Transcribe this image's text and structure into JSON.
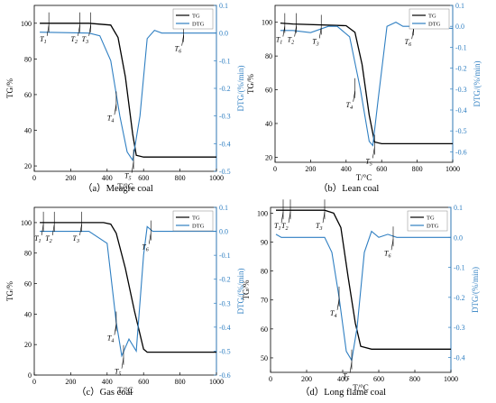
{
  "colors": {
    "tg": "#000000",
    "dtg": "#2f7fc2",
    "marker": "#000000"
  },
  "chart_data": [
    {
      "type": "line",
      "caption": "（a）Meagre coal",
      "xlabel": "T/°C",
      "ylabel": "TG/%",
      "y2label": "DTG/(%/min)",
      "xlim": [
        0,
        1000
      ],
      "xticks": [
        0,
        200,
        400,
        600,
        800,
        1000
      ],
      "ylim": [
        17,
        110
      ],
      "yticks": [
        20,
        40,
        60,
        80,
        100
      ],
      "y2lim": [
        -0.5,
        0.1
      ],
      "y2ticks": [
        -0.5,
        -0.4,
        -0.3,
        -0.2,
        -0.1,
        0.0,
        0.1
      ],
      "legend": [
        "TG",
        "DTG"
      ],
      "legend_position": "top-right",
      "series": [
        {
          "name": "TG",
          "axis": "left",
          "x": [
            30,
            300,
            420,
            460,
            500,
            540,
            560,
            600,
            1000
          ],
          "y": [
            100,
            100,
            99,
            92,
            70,
            38,
            26,
            25,
            25
          ]
        },
        {
          "name": "DTG",
          "axis": "right",
          "x": [
            30,
            300,
            360,
            420,
            470,
            510,
            540,
            580,
            620,
            660,
            700,
            1000
          ],
          "y": [
            0.003,
            0.0,
            -0.01,
            -0.1,
            -0.3,
            -0.43,
            -0.46,
            -0.3,
            -0.02,
            0.01,
            0.0,
            0.0
          ]
        }
      ],
      "markers": [
        {
          "label": "T1",
          "x": 80,
          "axis": "left",
          "y": 100
        },
        {
          "label": "T2",
          "x": 250,
          "axis": "left",
          "y": 100
        },
        {
          "label": "T3",
          "x": 310,
          "axis": "left",
          "y": 100
        },
        {
          "label": "T4",
          "x": 450,
          "axis": "right",
          "y": -0.25
        },
        {
          "label": "T5",
          "x": 545,
          "axis": "right",
          "y": -0.46
        },
        {
          "label": "T6",
          "x": 820,
          "axis": "right",
          "y": 0.0
        }
      ]
    },
    {
      "type": "line",
      "caption": "（b）Lean coal",
      "xlabel": "T/°C",
      "ylabel": "TG/%",
      "y2label": "DTG/(%/min)",
      "xlim": [
        0,
        1000
      ],
      "xticks": [
        0,
        200,
        400,
        600,
        800,
        1000
      ],
      "ylim": [
        17,
        110
      ],
      "yticks": [
        20,
        40,
        60,
        80,
        100
      ],
      "y2lim": [
        -0.65,
        0.1
      ],
      "y2ticks": [
        -0.6,
        -0.5,
        -0.4,
        -0.3,
        -0.2,
        -0.1,
        0.0,
        0.1
      ],
      "legend": [
        "TG",
        "DTG"
      ],
      "legend_position": "top-right",
      "series": [
        {
          "name": "TG",
          "axis": "left",
          "x": [
            30,
            100,
            400,
            450,
            490,
            530,
            560,
            600,
            1000
          ],
          "y": [
            99.5,
            99,
            98,
            94,
            75,
            45,
            29,
            28,
            28
          ]
        },
        {
          "name": "DTG",
          "axis": "right",
          "x": [
            30,
            100,
            200,
            300,
            350,
            420,
            480,
            530,
            550,
            580,
            630,
            680,
            720,
            800,
            1000
          ],
          "y": [
            -0.02,
            -0.02,
            -0.03,
            0.0,
            0.0,
            -0.05,
            -0.3,
            -0.55,
            -0.57,
            -0.35,
            0.0,
            0.02,
            0.0,
            0.0,
            -0.01
          ]
        }
      ],
      "markers": [
        {
          "label": "T1",
          "x": 55,
          "axis": "left",
          "y": 99
        },
        {
          "label": "T2",
          "x": 120,
          "axis": "left",
          "y": 99
        },
        {
          "label": "T3",
          "x": 260,
          "axis": "left",
          "y": 98
        },
        {
          "label": "T4",
          "x": 450,
          "axis": "right",
          "y": -0.3
        },
        {
          "label": "T5",
          "x": 560,
          "axis": "right",
          "y": -0.57
        },
        {
          "label": "T6",
          "x": 780,
          "axis": "right",
          "y": 0.0
        }
      ]
    },
    {
      "type": "line",
      "caption": "（c）Gas coal",
      "xlabel": "T/°C",
      "ylabel": "TG/%",
      "y2label": "DTG/(%/min)",
      "xlim": [
        0,
        1000
      ],
      "xticks": [
        0,
        200,
        400,
        600,
        800,
        1000
      ],
      "ylim": [
        0,
        110
      ],
      "yticks": [
        0,
        20,
        40,
        60,
        80,
        100
      ],
      "y2lim": [
        -0.6,
        0.1
      ],
      "y2ticks": [
        -0.6,
        -0.5,
        -0.4,
        -0.3,
        -0.2,
        -0.1,
        0.0,
        0.1
      ],
      "legend": [
        "TG",
        "DTG"
      ],
      "legend_position": "top-right",
      "series": [
        {
          "name": "TG",
          "axis": "left",
          "x": [
            30,
            380,
            420,
            450,
            500,
            550,
            600,
            620,
            1000
          ],
          "y": [
            100,
            100,
            99,
            93,
            70,
            42,
            17,
            15,
            15
          ]
        },
        {
          "name": "DTG",
          "axis": "right",
          "x": [
            30,
            300,
            400,
            450,
            480,
            520,
            560,
            600,
            620,
            650,
            700,
            1000
          ],
          "y": [
            0.0,
            0.0,
            -0.05,
            -0.38,
            -0.52,
            -0.45,
            -0.5,
            -0.1,
            0.02,
            0.0,
            0.0,
            0.0
          ]
        }
      ],
      "markers": [
        {
          "label": "T1",
          "x": 50,
          "axis": "left",
          "y": 100
        },
        {
          "label": "T2",
          "x": 110,
          "axis": "left",
          "y": 100
        },
        {
          "label": "T3",
          "x": 260,
          "axis": "left",
          "y": 100
        },
        {
          "label": "T4",
          "x": 450,
          "axis": "right",
          "y": -0.38
        },
        {
          "label": "T5",
          "x": 490,
          "axis": "right",
          "y": -0.52
        },
        {
          "label": "T6",
          "x": 640,
          "axis": "right",
          "y": 0.0
        }
      ]
    },
    {
      "type": "line",
      "caption": "（d）Long flame coal",
      "xlabel": "T/°C",
      "ylabel": "TG/%",
      "y2label": "DTG/(%/min)",
      "xlim": [
        0,
        1000
      ],
      "xticks": [
        0,
        200,
        400,
        600,
        800,
        1000
      ],
      "ylim": [
        45,
        102
      ],
      "yticks": [
        50,
        60,
        70,
        80,
        90,
        100
      ],
      "y2lim": [
        -0.45,
        0.1
      ],
      "y2ticks": [
        -0.4,
        -0.3,
        -0.2,
        -0.1,
        0.0,
        0.1
      ],
      "legend": [
        "TG",
        "DTG"
      ],
      "legend_position": "top-right",
      "series": [
        {
          "name": "TG",
          "axis": "left",
          "x": [
            30,
            300,
            350,
            390,
            430,
            470,
            500,
            560,
            1000
          ],
          "y": [
            101,
            101,
            100,
            95,
            78,
            62,
            54,
            53,
            53
          ]
        },
        {
          "name": "DTG",
          "axis": "right",
          "x": [
            30,
            60,
            100,
            300,
            340,
            380,
            420,
            450,
            480,
            520,
            560,
            600,
            650,
            700,
            1000
          ],
          "y": [
            0.01,
            0.0,
            0.0,
            0.0,
            -0.05,
            -0.2,
            -0.38,
            -0.41,
            -0.3,
            -0.05,
            0.02,
            0.0,
            0.01,
            0.0,
            0.0
          ]
        }
      ],
      "markers": [
        {
          "label": "T1",
          "x": 70,
          "axis": "left",
          "y": 101
        },
        {
          "label": "T2",
          "x": 110,
          "axis": "left",
          "y": 101
        },
        {
          "label": "T3",
          "x": 300,
          "axis": "left",
          "y": 101
        },
        {
          "label": "T4",
          "x": 380,
          "axis": "right",
          "y": -0.2
        },
        {
          "label": "T5",
          "x": 450,
          "axis": "right",
          "y": -0.41
        },
        {
          "label": "T6",
          "x": 680,
          "axis": "right",
          "y": 0.0
        }
      ]
    }
  ]
}
